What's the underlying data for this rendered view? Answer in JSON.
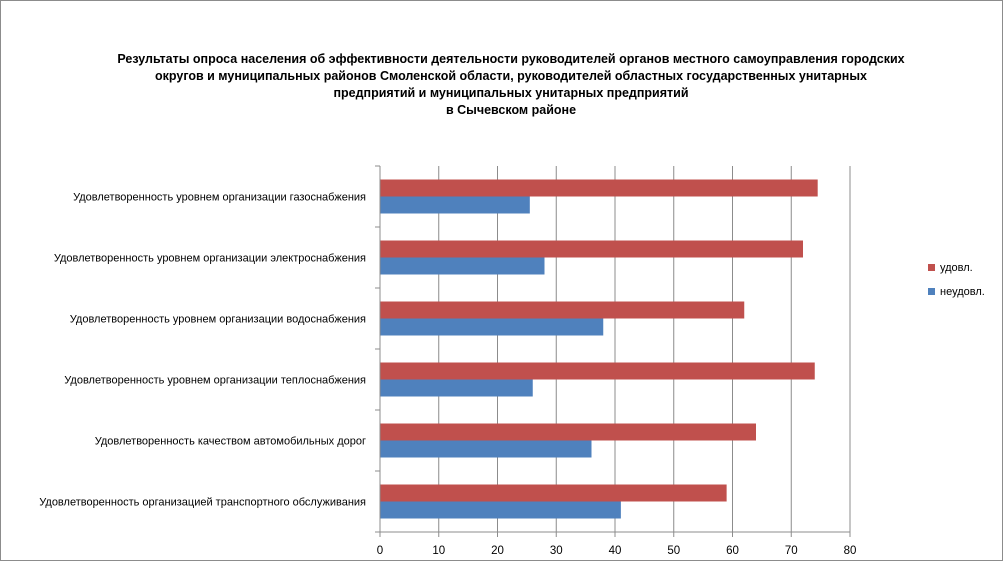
{
  "chart_data": {
    "type": "bar",
    "orientation": "horizontal",
    "title": [
      "Результаты опроса населения об эффективности деятельности руководителей органов местного самоуправления городских",
      "округов и муниципальных районов Смоленской области, руководителей областных государственных унитарных",
      "предприятий и муниципальных унитарных предприятий",
      "в Сычевском районе"
    ],
    "categories": [
      "Удовлетворенность  уровнем  организации газоснабжения",
      "Удовлетворенность  уровнем организации электроснабжения",
      "Удовлетворенность  уровнем  организации водоснабжения",
      "Удовлетворенность  уровнем  организации теплоснабжения",
      "Удовлетворенность  качеством  автомобильных дорог",
      "Удовлетворенность  организацией  транспортного обслуживания"
    ],
    "series": [
      {
        "name": "удовл.",
        "color": "#c0504d",
        "values": [
          74.5,
          72,
          62,
          74,
          64,
          59
        ]
      },
      {
        "name": "неудовл.",
        "color": "#4f81bd",
        "values": [
          25.5,
          28,
          38,
          26,
          36,
          41
        ]
      }
    ],
    "xlim": [
      0,
      80
    ],
    "xticks": [
      0,
      10,
      20,
      30,
      40,
      50,
      60,
      70,
      80
    ],
    "grid": true,
    "legend": "right"
  }
}
